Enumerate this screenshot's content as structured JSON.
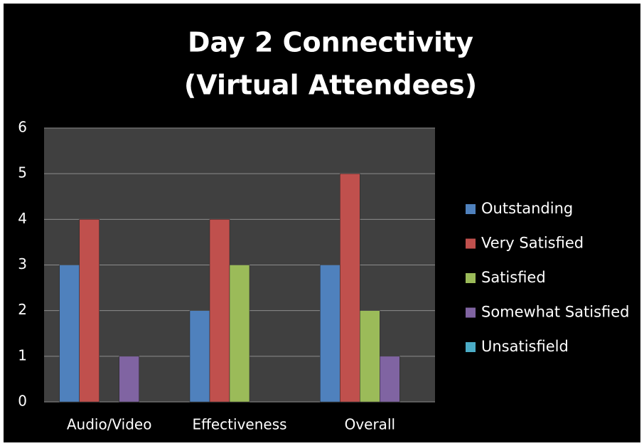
{
  "chart_data": {
    "type": "bar",
    "title": [
      "Day 2 Connectivity",
      "(Virtual Attendees)"
    ],
    "categories": [
      "Audio/Video",
      "Effectiveness",
      "Overall"
    ],
    "series": [
      {
        "name": "Outstanding",
        "color": "#4f81bd",
        "values": [
          3,
          2,
          3
        ]
      },
      {
        "name": "Very Satisfied",
        "color": "#c0504d",
        "values": [
          4,
          4,
          5
        ]
      },
      {
        "name": "Satisfied",
        "color": "#9bbb59",
        "values": [
          0,
          3,
          2
        ]
      },
      {
        "name": "Somewhat Satisfied",
        "color": "#8064a2",
        "values": [
          1,
          0,
          1
        ]
      },
      {
        "name": "Unsatisfield",
        "color": "#4bacc6",
        "values": [
          0,
          0,
          0
        ]
      }
    ],
    "ylim": [
      0,
      6
    ],
    "yticks": [
      0,
      1,
      2,
      3,
      4,
      5,
      6
    ],
    "grid": true,
    "legend": "right"
  }
}
